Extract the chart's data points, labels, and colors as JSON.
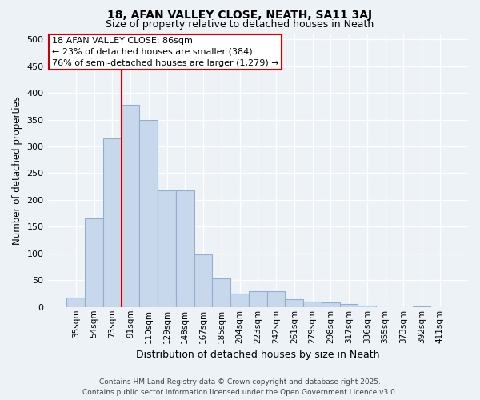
{
  "title": "18, AFAN VALLEY CLOSE, NEATH, SA11 3AJ",
  "subtitle": "Size of property relative to detached houses in Neath",
  "xlabel": "Distribution of detached houses by size in Neath",
  "ylabel": "Number of detached properties",
  "categories": [
    "35sqm",
    "54sqm",
    "73sqm",
    "91sqm",
    "110sqm",
    "129sqm",
    "148sqm",
    "167sqm",
    "185sqm",
    "204sqm",
    "223sqm",
    "242sqm",
    "261sqm",
    "279sqm",
    "298sqm",
    "317sqm",
    "336sqm",
    "355sqm",
    "373sqm",
    "392sqm",
    "411sqm"
  ],
  "values": [
    17,
    165,
    315,
    378,
    350,
    218,
    218,
    98,
    54,
    25,
    30,
    30,
    14,
    10,
    8,
    5,
    2,
    0,
    0,
    1,
    0
  ],
  "bar_color": "#c8d8ec",
  "bar_edge_color": "#90b0d0",
  "vline_x": 2.5,
  "annotation_line1": "18 AFAN VALLEY CLOSE: 86sqm",
  "annotation_line2": "← 23% of detached houses are smaller (384)",
  "annotation_line3": "76% of semi-detached houses are larger (1,279) →",
  "annotation_box_facecolor": "#ffffff",
  "annotation_box_edgecolor": "#cc0000",
  "vline_color": "#cc0000",
  "background_color": "#edf2f7",
  "grid_color": "#ffffff",
  "footer": "Contains HM Land Registry data © Crown copyright and database right 2025.\nContains public sector information licensed under the Open Government Licence v3.0.",
  "ylim": [
    0,
    510
  ],
  "yticks": [
    0,
    50,
    100,
    150,
    200,
    250,
    300,
    350,
    400,
    450,
    500
  ],
  "title_fontsize": 10,
  "subtitle_fontsize": 9
}
